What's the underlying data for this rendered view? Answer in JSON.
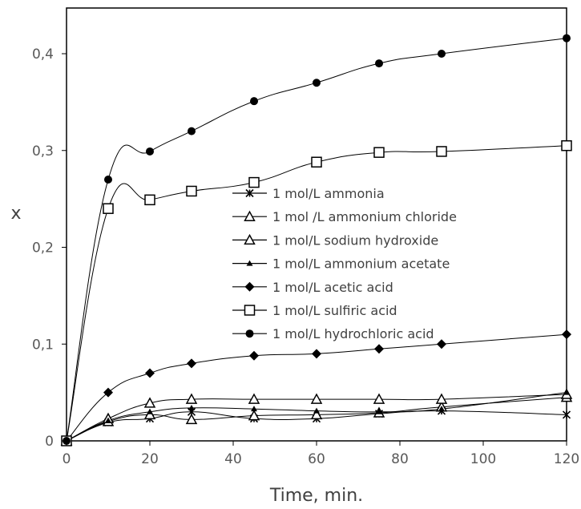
{
  "chart_data": {
    "type": "line",
    "xlabel": "Time, min.",
    "ylabel": "x",
    "xlim": [
      0,
      120
    ],
    "ylim": [
      0,
      0.45
    ],
    "xticks": [
      "0",
      "20",
      "40",
      "60",
      "80",
      "100",
      "120"
    ],
    "yticks": [
      "0",
      "0,1",
      "0,2",
      "0,3",
      "0,4"
    ],
    "grid": false,
    "legend_position": "center",
    "series": [
      {
        "name": "1 mol/L ammonia",
        "marker": "asterisk",
        "x": [
          0,
          10,
          20,
          30,
          45,
          60,
          75,
          90,
          120
        ],
        "y": [
          0,
          0.019,
          0.023,
          0.03,
          0.023,
          0.023,
          0.028,
          0.031,
          0.027
        ]
      },
      {
        "name": "1 mol /L ammonium chloride",
        "marker": "triangle-open",
        "x": [
          0,
          10,
          20,
          30,
          45,
          60,
          75,
          90,
          120
        ],
        "y": [
          0,
          0.02,
          0.027,
          0.022,
          0.026,
          0.027,
          0.029,
          0.035,
          0.045
        ]
      },
      {
        "name": "1 mol/L sodium hydroxide",
        "marker": "triangle-open",
        "x": [
          0,
          10,
          20,
          30,
          45,
          60,
          75,
          90,
          120
        ],
        "y": [
          0,
          0.023,
          0.039,
          0.043,
          0.043,
          0.043,
          0.043,
          0.043,
          0.048
        ]
      },
      {
        "name": "1 mol/L ammonium acetate",
        "marker": "triangle-small",
        "x": [
          0,
          10,
          20,
          30,
          45,
          60,
          75,
          90,
          120
        ],
        "y": [
          0,
          0.021,
          0.03,
          0.034,
          0.033,
          0.031,
          0.03,
          0.033,
          0.05
        ]
      },
      {
        "name": "1 mol/L acetic acid",
        "marker": "diamond",
        "x": [
          0,
          10,
          20,
          30,
          45,
          60,
          75,
          90,
          120
        ],
        "y": [
          0,
          0.05,
          0.07,
          0.08,
          0.088,
          0.09,
          0.095,
          0.1,
          0.11
        ]
      },
      {
        "name": "1 mol/L sulfiric acid",
        "marker": "square-open",
        "x": [
          0,
          10,
          20,
          30,
          45,
          60,
          75,
          90,
          120
        ],
        "y": [
          0,
          0.24,
          0.249,
          0.258,
          0.267,
          0.288,
          0.298,
          0.299,
          0.305
        ]
      },
      {
        "name": "1 mol/L hydrochloric acid",
        "marker": "circle",
        "x": [
          0,
          10,
          20,
          30,
          45,
          60,
          75,
          90,
          120
        ],
        "y": [
          0,
          0.27,
          0.299,
          0.32,
          0.351,
          0.37,
          0.39,
          0.4,
          0.416
        ]
      }
    ]
  }
}
